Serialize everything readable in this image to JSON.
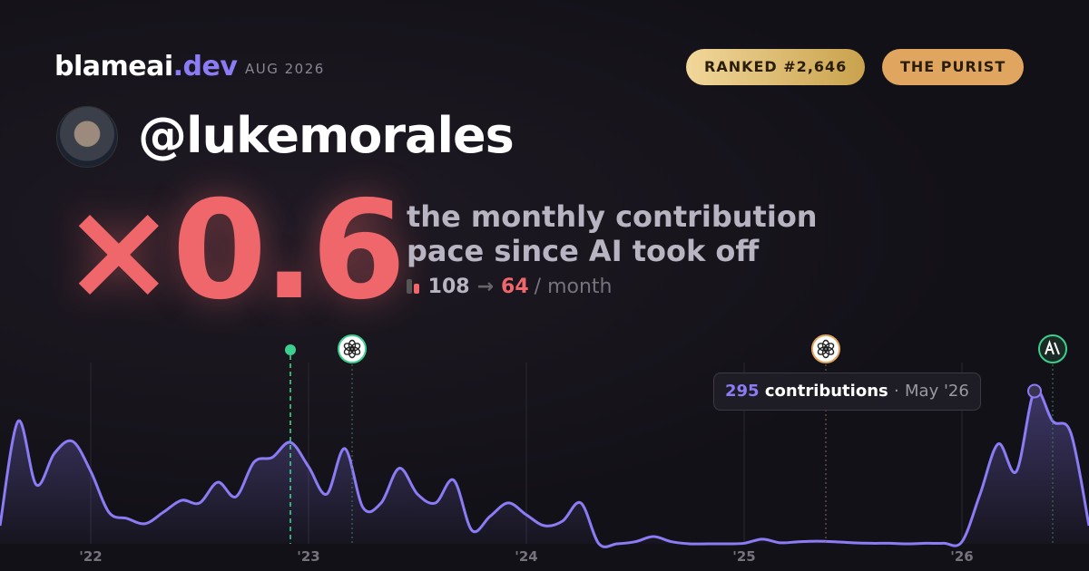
{
  "header": {
    "brand": "blameai",
    "brand_suffix": ".dev",
    "period": "AUG 2026",
    "badges": [
      "RANKED #2,646",
      "THE PURIST"
    ]
  },
  "profile": {
    "handle": "@lukemorales"
  },
  "headline": {
    "multiplier": "×0.6",
    "description": [
      "the monthly contribution",
      "pace since AI took off"
    ],
    "before": "108",
    "arrow": "→",
    "after": "64",
    "unit": "/ month"
  },
  "chart_data": {
    "type": "area",
    "color": "#8b7cf6",
    "x": [
      0,
      1,
      2,
      3,
      4,
      5,
      6,
      7,
      8,
      9,
      10,
      11,
      12,
      13,
      14,
      15,
      16,
      17,
      18,
      19,
      20,
      21,
      22,
      23,
      24,
      25,
      26,
      27,
      28,
      29,
      30,
      31,
      32,
      33,
      34,
      35,
      36,
      37,
      38,
      39,
      40,
      41,
      42,
      43,
      44,
      45,
      46,
      47,
      48,
      49,
      50,
      51,
      52,
      53,
      54,
      55,
      56,
      57,
      58,
      59,
      60
    ],
    "values": [
      35,
      237,
      114,
      175,
      198,
      140,
      61,
      49,
      39,
      61,
      84,
      79,
      119,
      91,
      158,
      167,
      196,
      149,
      96,
      184,
      70,
      79,
      146,
      96,
      79,
      123,
      26,
      53,
      79,
      56,
      35,
      44,
      79,
      0,
      0,
      4,
      14,
      4,
      0,
      0,
      0,
      1,
      9,
      2,
      4,
      5,
      4,
      2,
      1,
      1,
      0,
      1,
      1,
      4,
      96,
      193,
      140,
      295,
      237,
      214,
      35
    ],
    "xlim": [
      0,
      60
    ],
    "ylim": [
      0,
      380
    ],
    "xticks": [
      {
        "value": 5,
        "label": "'22"
      },
      {
        "value": 17,
        "label": "'23"
      },
      {
        "value": 29,
        "label": "'24"
      },
      {
        "value": 41,
        "label": "'25"
      },
      {
        "value": 53,
        "label": "'26"
      }
    ],
    "events": [
      16,
      19.4,
      45.5,
      58
    ],
    "highlight": 57,
    "tooltip": {
      "label": "contributions",
      "date": "May '26"
    }
  }
}
